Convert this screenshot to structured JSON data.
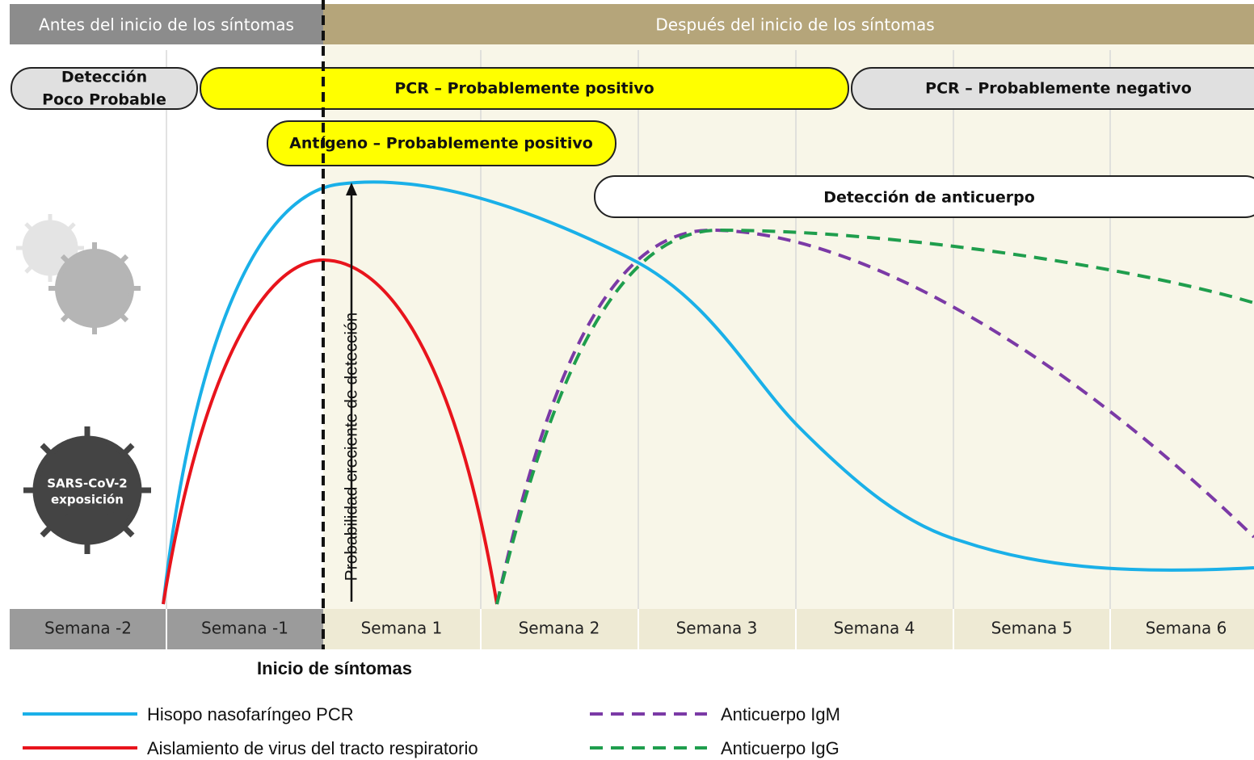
{
  "header": {
    "before": "Antes del inicio de los síntomas",
    "after": "Después del inicio de los síntomas"
  },
  "bands": {
    "unlikely": [
      "Detección",
      "Poco Probable"
    ],
    "pcr_positive": "PCR – Probablemente positivo",
    "pcr_negative": "PCR – Probablemente negativo",
    "antigen_positive": "Antígeno – Probablemente positivo",
    "antibody": "Detección de anticuerpo"
  },
  "arrow_label": "Probabilidad creciente de detección",
  "exposure": [
    "SARS-CoV-2",
    "exposición"
  ],
  "weeks": [
    "Semana -2",
    "Semana -1",
    "Semana 1",
    "Semana 2",
    "Semana 3",
    "Semana 4",
    "Semana 5",
    "Semana 6"
  ],
  "onset_label": "Inicio de síntomas",
  "legend": [
    "Hisopo nasofaríngeo PCR",
    "Aislamiento de virus del tracto respiratorio",
    "Anticuerpo IgM",
    "Anticuerpo IgG"
  ]
}
